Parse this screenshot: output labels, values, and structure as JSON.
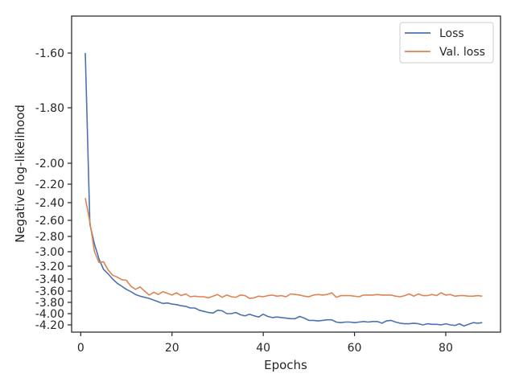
{
  "chart_data": {
    "type": "line",
    "title": "",
    "xlabel": "Epochs",
    "ylabel": "Negative log-likelihood",
    "y_scale": "custom-nonlinear (labels shown)",
    "x_ticks": [
      0,
      20,
      40,
      60,
      80
    ],
    "y_ticks": [
      "-1.60",
      "-1.80",
      "-2.00",
      "-2.20",
      "-2.40",
      "-2.60",
      "-2.80",
      "-3.00",
      "-3.20",
      "-3.40",
      "-3.60",
      "-3.80",
      "-4.00",
      "-4.20"
    ],
    "y_tick_values": [
      -1.6,
      -1.8,
      -2.0,
      -2.2,
      -2.4,
      -2.6,
      -2.8,
      -3.0,
      -3.2,
      -3.4,
      -3.6,
      -3.8,
      -4.0,
      -4.2
    ],
    "xlim": [
      -2,
      92
    ],
    "legend_position": "top-right",
    "grid": false,
    "series": [
      {
        "name": "Loss",
        "color": "#4c72b0",
        "x": [
          1,
          2,
          3,
          4,
          5,
          6,
          7,
          8,
          9,
          10,
          11,
          12,
          13,
          14,
          15,
          16,
          17,
          18,
          19,
          20,
          21,
          22,
          23,
          24,
          25,
          26,
          27,
          28,
          29,
          30,
          31,
          32,
          33,
          34,
          35,
          36,
          37,
          38,
          39,
          40,
          41,
          42,
          43,
          44,
          45,
          46,
          47,
          48,
          49,
          50,
          51,
          52,
          53,
          54,
          55,
          56,
          57,
          58,
          59,
          60,
          61,
          62,
          63,
          64,
          65,
          66,
          67,
          68,
          69,
          70,
          71,
          72,
          73,
          74,
          75,
          76,
          77,
          78,
          79,
          80,
          81,
          82,
          83,
          84,
          85,
          86,
          87,
          88
        ],
        "values": [
          -1.6,
          -2.65,
          -2.9,
          -3.1,
          -3.25,
          -3.32,
          -3.4,
          -3.47,
          -3.52,
          -3.57,
          -3.61,
          -3.66,
          -3.69,
          -3.71,
          -3.73,
          -3.76,
          -3.79,
          -3.82,
          -3.81,
          -3.83,
          -3.84,
          -3.86,
          -3.87,
          -3.9,
          -3.9,
          -3.94,
          -3.96,
          -3.98,
          -3.99,
          -3.94,
          -3.95,
          -4.0,
          -4.0,
          -3.98,
          -4.02,
          -4.04,
          -4.01,
          -4.04,
          -4.06,
          -4.01,
          -4.05,
          -4.07,
          -4.06,
          -4.07,
          -4.08,
          -4.09,
          -4.09,
          -4.05,
          -4.08,
          -4.12,
          -4.12,
          -4.13,
          -4.12,
          -4.11,
          -4.11,
          -4.15,
          -4.16,
          -4.15,
          -4.15,
          -4.16,
          -4.15,
          -4.14,
          -4.15,
          -4.14,
          -4.14,
          -4.17,
          -4.13,
          -4.12,
          -4.15,
          -4.17,
          -4.18,
          -4.18,
          -4.17,
          -4.18,
          -4.2,
          -4.18,
          -4.19,
          -4.19,
          -4.2,
          -4.18,
          -4.2,
          -4.21,
          -4.18,
          -4.22,
          -4.19,
          -4.16,
          -4.17,
          -4.16
        ]
      },
      {
        "name": "Val. loss",
        "color": "#dd8452",
        "x": [
          1,
          2,
          3,
          4,
          5,
          6,
          7,
          8,
          9,
          10,
          11,
          12,
          13,
          14,
          15,
          16,
          17,
          18,
          19,
          20,
          21,
          22,
          23,
          24,
          25,
          26,
          27,
          28,
          29,
          30,
          31,
          32,
          33,
          34,
          35,
          36,
          37,
          38,
          39,
          40,
          41,
          42,
          43,
          44,
          45,
          46,
          47,
          48,
          49,
          50,
          51,
          52,
          53,
          54,
          55,
          56,
          57,
          58,
          59,
          60,
          61,
          62,
          63,
          64,
          65,
          66,
          67,
          68,
          69,
          70,
          71,
          72,
          73,
          74,
          75,
          76,
          77,
          78,
          79,
          80,
          81,
          82,
          83,
          84,
          85,
          86,
          87,
          88
        ],
        "values": [
          -2.35,
          -2.62,
          -3.0,
          -3.15,
          -3.14,
          -3.26,
          -3.34,
          -3.37,
          -3.41,
          -3.42,
          -3.52,
          -3.57,
          -3.53,
          -3.6,
          -3.67,
          -3.62,
          -3.66,
          -3.61,
          -3.64,
          -3.67,
          -3.63,
          -3.68,
          -3.65,
          -3.7,
          -3.69,
          -3.7,
          -3.7,
          -3.72,
          -3.69,
          -3.66,
          -3.71,
          -3.67,
          -3.7,
          -3.71,
          -3.67,
          -3.68,
          -3.73,
          -3.72,
          -3.69,
          -3.7,
          -3.68,
          -3.67,
          -3.69,
          -3.68,
          -3.7,
          -3.65,
          -3.66,
          -3.67,
          -3.69,
          -3.7,
          -3.67,
          -3.66,
          -3.67,
          -3.66,
          -3.63,
          -3.71,
          -3.68,
          -3.68,
          -3.68,
          -3.69,
          -3.7,
          -3.67,
          -3.67,
          -3.67,
          -3.66,
          -3.67,
          -3.67,
          -3.67,
          -3.69,
          -3.7,
          -3.68,
          -3.65,
          -3.69,
          -3.65,
          -3.68,
          -3.68,
          -3.66,
          -3.68,
          -3.63,
          -3.67,
          -3.66,
          -3.69,
          -3.68,
          -3.68,
          -3.69,
          -3.69,
          -3.68,
          -3.69
        ]
      }
    ]
  }
}
